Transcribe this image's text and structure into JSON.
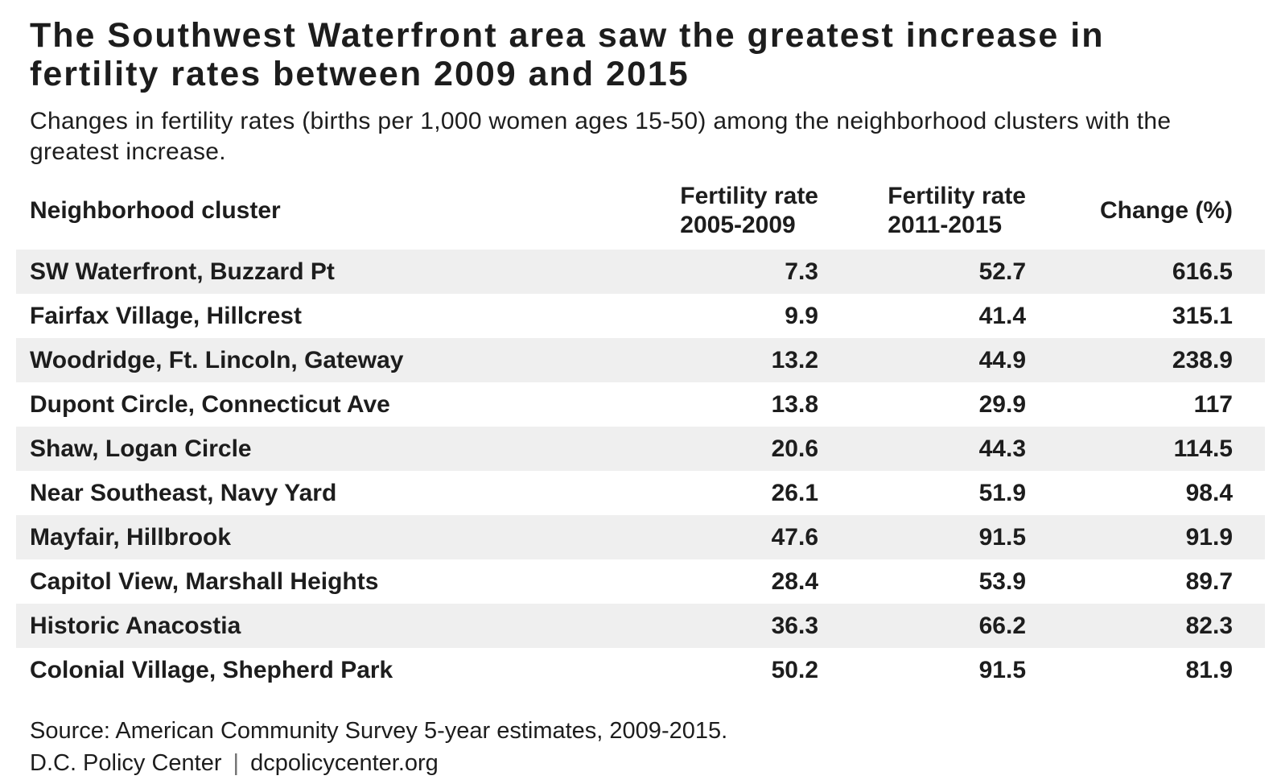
{
  "title": "The Southwest Waterfront area saw the greatest increase in fertility rates between 2009 and 2015",
  "subtitle": "Changes in fertility rates (births per 1,000 women ages 15-50) among the neighborhood clusters with the greatest increase.",
  "table": {
    "headers": [
      {
        "line1": "Neighborhood cluster",
        "line2": ""
      },
      {
        "line1": "Fertility rate",
        "line2": "2005-2009"
      },
      {
        "line1": "Fertility rate",
        "line2": "2011-2015"
      },
      {
        "line1": "Change (%)",
        "line2": ""
      }
    ],
    "rows": [
      {
        "neighborhood": "SW Waterfront, Buzzard Pt",
        "rate_2005_2009": "7.3",
        "rate_2011_2015": "52.7",
        "change_pct": "616.5"
      },
      {
        "neighborhood": "Fairfax Village, Hillcrest",
        "rate_2005_2009": "9.9",
        "rate_2011_2015": "41.4",
        "change_pct": "315.1"
      },
      {
        "neighborhood": "Woodridge, Ft. Lincoln, Gateway",
        "rate_2005_2009": "13.2",
        "rate_2011_2015": "44.9",
        "change_pct": "238.9"
      },
      {
        "neighborhood": "Dupont Circle, Connecticut Ave",
        "rate_2005_2009": "13.8",
        "rate_2011_2015": "29.9",
        "change_pct": "117"
      },
      {
        "neighborhood": "Shaw, Logan Circle",
        "rate_2005_2009": "20.6",
        "rate_2011_2015": "44.3",
        "change_pct": "114.5"
      },
      {
        "neighborhood": "Near Southeast, Navy Yard",
        "rate_2005_2009": "26.1",
        "rate_2011_2015": "51.9",
        "change_pct": "98.4"
      },
      {
        "neighborhood": "Mayfair, Hillbrook",
        "rate_2005_2009": "47.6",
        "rate_2011_2015": "91.5",
        "change_pct": "91.9"
      },
      {
        "neighborhood": "Capitol View, Marshall Heights",
        "rate_2005_2009": "28.4",
        "rate_2011_2015": "53.9",
        "change_pct": "89.7"
      },
      {
        "neighborhood": "Historic Anacostia",
        "rate_2005_2009": "36.3",
        "rate_2011_2015": "66.2",
        "change_pct": "82.3"
      },
      {
        "neighborhood": "Colonial Village, Shepherd Park",
        "rate_2005_2009": "50.2",
        "rate_2011_2015": "91.5",
        "change_pct": "81.9"
      }
    ]
  },
  "footer": {
    "source": "Source: American Community Survey 5-year estimates, 2009-2015.",
    "org": "D.C. Policy Center",
    "separator": "|",
    "website": "dcpolicycenter.org"
  },
  "colors": {
    "stripe": "#efefef",
    "text": "#1d1d1d",
    "separator_gray": "#6f6f6f"
  },
  "chart_data": {
    "type": "table",
    "title": "The Southwest Waterfront area saw the greatest increase in fertility rates between 2009 and 2015",
    "subtitle": "Changes in fertility rates (births per 1,000 women ages 15-50) among the neighborhood clusters with the greatest increase.",
    "columns": [
      "Neighborhood cluster",
      "Fertility rate 2005-2009",
      "Fertility rate 2011-2015",
      "Change (%)"
    ],
    "rows": [
      [
        "SW Waterfront, Buzzard Pt",
        7.3,
        52.7,
        616.5
      ],
      [
        "Fairfax Village, Hillcrest",
        9.9,
        41.4,
        315.1
      ],
      [
        "Woodridge, Ft. Lincoln, Gateway",
        13.2,
        44.9,
        238.9
      ],
      [
        "Dupont Circle, Connecticut Ave",
        13.8,
        29.9,
        117
      ],
      [
        "Shaw, Logan Circle",
        20.6,
        44.3,
        114.5
      ],
      [
        "Near Southeast, Navy Yard",
        26.1,
        51.9,
        98.4
      ],
      [
        "Mayfair, Hillbrook",
        47.6,
        91.5,
        91.9
      ],
      [
        "Capitol View, Marshall Heights",
        28.4,
        53.9,
        89.7
      ],
      [
        "Historic Anacostia",
        36.3,
        66.2,
        82.3
      ],
      [
        "Colonial Village, Shepherd Park",
        50.2,
        91.5,
        81.9
      ]
    ],
    "source": "Source: American Community Survey 5-year estimates, 2009-2015. D.C. Policy Center | dcpolicycenter.org"
  }
}
